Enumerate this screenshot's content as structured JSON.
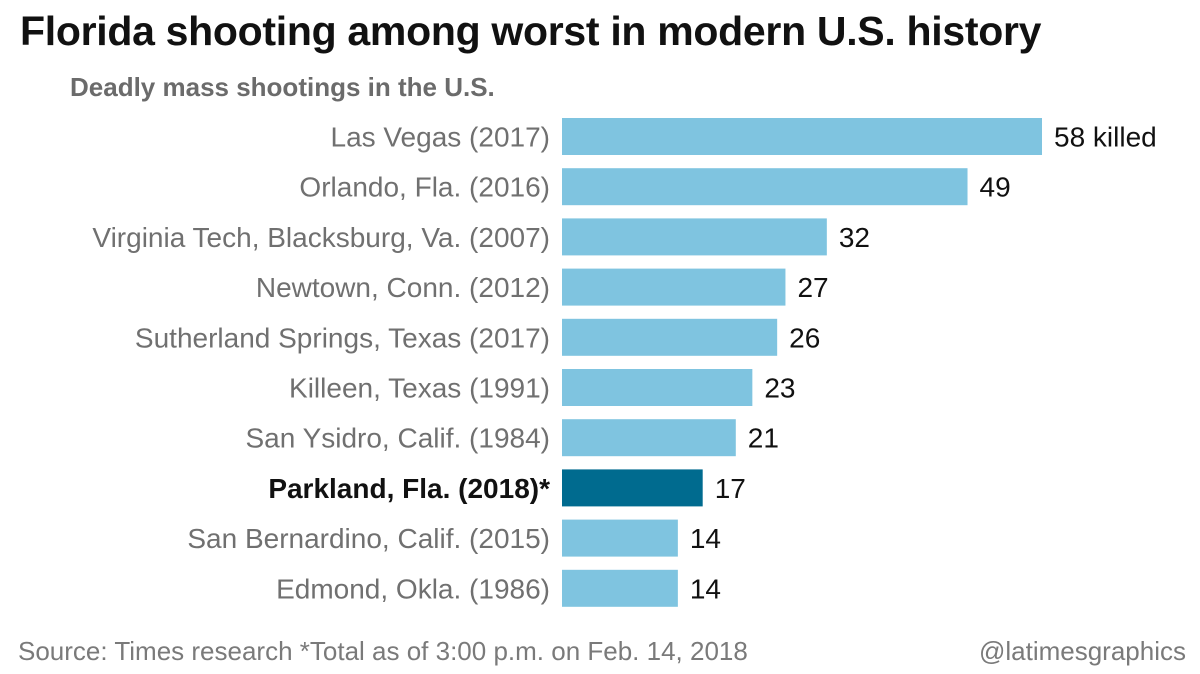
{
  "header": {
    "title": "Florida shooting among worst in modern U.S. history",
    "subtitle": "Deadly mass shootings in the U.S."
  },
  "footer": {
    "source": "Source: Times research *Total as of 3:00 p.m. on Feb. 14, 2018",
    "credit": "@latimesgraphics"
  },
  "colors": {
    "bar": "#7fc4e0",
    "highlight_bar": "#006b8f",
    "label": "#707070",
    "highlight_label": "#111111",
    "value": "#111111"
  },
  "chart_data": {
    "type": "bar",
    "orientation": "horizontal",
    "title": "Florida shooting among worst in modern U.S. history",
    "subtitle": "Deadly mass shootings in the U.S.",
    "categories": [
      "Las Vegas (2017)",
      "Orlando, Fla. (2016)",
      "Virginia Tech, Blacksburg, Va. (2007)",
      "Newtown, Conn. (2012)",
      "Sutherland Springs, Texas (2017)",
      "Killeen, Texas (1991)",
      "San Ysidro, Calif. (1984)",
      "Parkland, Fla. (2018)*",
      "San Bernardino, Calif. (2015)",
      "Edmond, Okla. (1986)"
    ],
    "values": [
      58,
      49,
      32,
      27,
      26,
      23,
      21,
      17,
      14,
      14
    ],
    "value_labels": [
      "58 killed",
      "49",
      "32",
      "27",
      "26",
      "23",
      "21",
      "17",
      "14",
      "14"
    ],
    "highlight_index": 7,
    "xlim": [
      0,
      58
    ],
    "grid": false,
    "legend": "none"
  }
}
